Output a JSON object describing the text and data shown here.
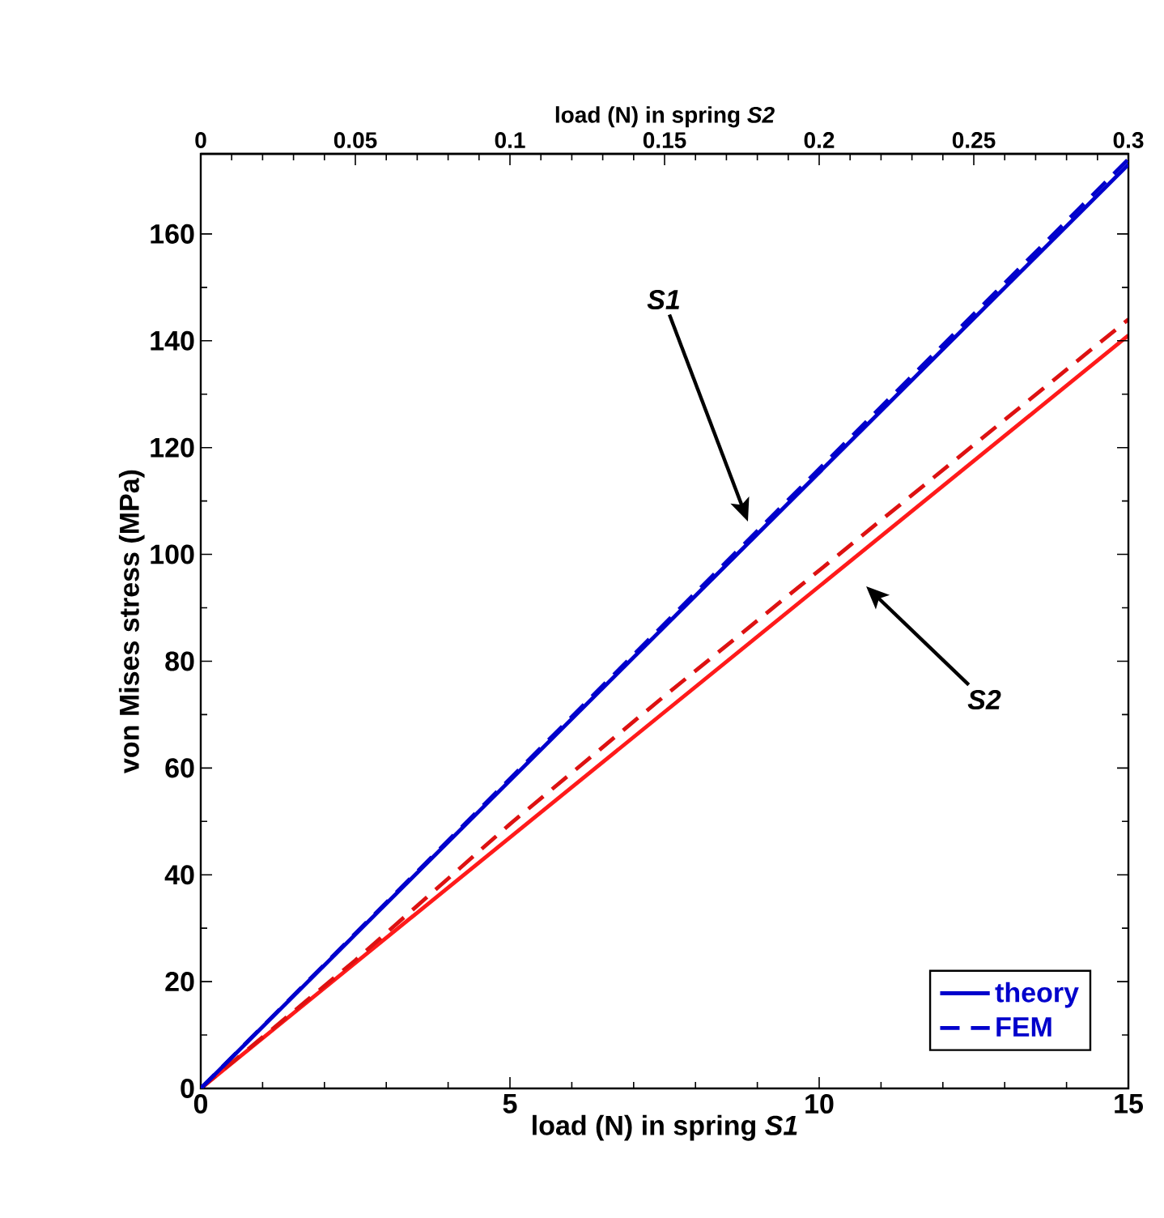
{
  "chart_data": {
    "type": "line",
    "xlabel": "load (N) in spring *S1*",
    "x2label": "load (N) in spring *S2*",
    "ylabel": "von Mises stress (MPa)",
    "xlim": [
      0,
      15
    ],
    "xticks": [
      0,
      5,
      10,
      15
    ],
    "x2lim": [
      0,
      0.3
    ],
    "x2ticks": [
      0,
      0.05,
      0.1,
      0.15,
      0.2,
      0.25,
      0.3
    ],
    "ylim": [
      0,
      175
    ],
    "yticks": [
      0,
      20,
      40,
      60,
      80,
      100,
      120,
      140,
      160
    ],
    "legend": "bottom right",
    "series": [
      {
        "name": "theory",
        "color": "#0000cc",
        "line_style": "solid",
        "x": [
          0,
          15
        ],
        "values": [
          0,
          173
        ]
      },
      {
        "name": "FEM",
        "color": "#0000cc",
        "line_style": "dashed",
        "x": [
          0,
          15
        ],
        "values": [
          0,
          174
        ]
      },
      {
        "color": "#ff1a1a",
        "line_style": "solid",
        "axis": "x2",
        "x": [
          0,
          0.3
        ],
        "values": [
          0,
          141
        ]
      },
      {
        "color": "#dd1111",
        "line_style": "dashed",
        "axis": "x2",
        "x": [
          0,
          0.05,
          0.1,
          0.15,
          0.2,
          0.25,
          0.3
        ],
        "values": [
          0,
          24,
          49.5,
          73.5,
          97,
          120.5,
          144
        ]
      }
    ],
    "annotations": [
      "*S1*",
      "*S2*"
    ]
  }
}
